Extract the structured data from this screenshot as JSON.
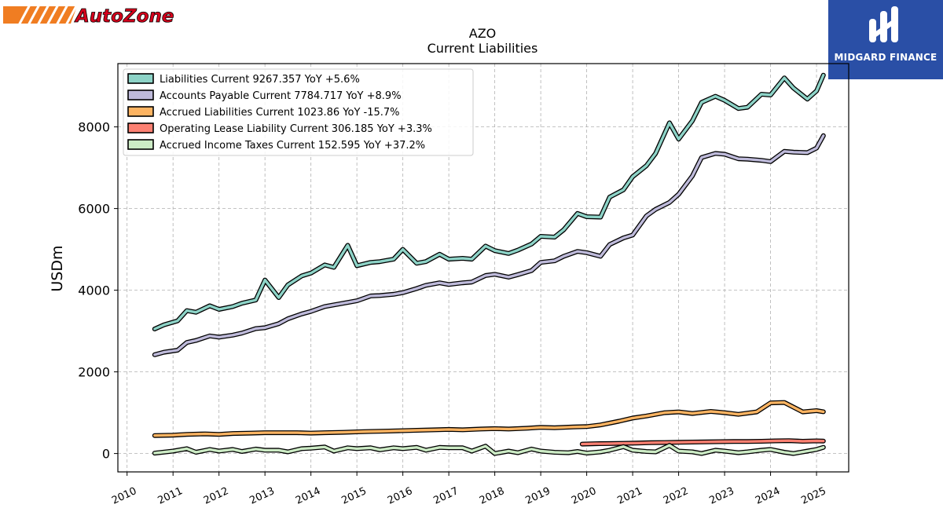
{
  "logos": {
    "left_text": "AutoZone",
    "right_text": "MIDGARD FINANCE"
  },
  "colors": {
    "autozone_orange": "#f07d22",
    "autozone_red": "#d6001c",
    "midgard_blue": "#2a4fa6"
  },
  "chart_data": {
    "type": "line",
    "title": "AZO",
    "subtitle": "Current  Liabilities",
    "xlabel": "",
    "ylabel": "USDm",
    "xlim": [
      2009.8,
      2025.7
    ],
    "ylim": [
      -450,
      9550
    ],
    "grid": true,
    "legend_position": "top-left",
    "x_ticks": [
      "2010",
      "2011",
      "2012",
      "2013",
      "2014",
      "2015",
      "2016",
      "2017",
      "2018",
      "2019",
      "2020",
      "2021",
      "2022",
      "2023",
      "2024",
      "2025"
    ],
    "y_ticks": [
      "0",
      "2000",
      "4000",
      "6000",
      "8000"
    ],
    "series": [
      {
        "name": "Liabilities Current",
        "legend": "Liabilities Current  9267.357 YoY +5.6%",
        "color": "#8dd3c7",
        "x": [
          2010.6,
          2010.8,
          2011.1,
          2011.3,
          2011.5,
          2011.8,
          2012.0,
          2012.3,
          2012.5,
          2012.8,
          2013.0,
          2013.3,
          2013.5,
          2013.8,
          2014.0,
          2014.3,
          2014.5,
          2014.8,
          2015.0,
          2015.3,
          2015.5,
          2015.8,
          2016.0,
          2016.3,
          2016.5,
          2016.8,
          2017.0,
          2017.3,
          2017.5,
          2017.8,
          2018.0,
          2018.3,
          2018.5,
          2018.8,
          2019.0,
          2019.3,
          2019.5,
          2019.8,
          2020.0,
          2020.3,
          2020.5,
          2020.8,
          2021.0,
          2021.3,
          2021.5,
          2021.8,
          2022.0,
          2022.3,
          2022.5,
          2022.8,
          2023.0,
          2023.3,
          2023.5,
          2023.8,
          2024.0,
          2024.3,
          2024.5,
          2024.8,
          2025.0,
          2025.15
        ],
        "values": [
          3050,
          3150,
          3250,
          3500,
          3460,
          3620,
          3530,
          3600,
          3680,
          3760,
          4250,
          3820,
          4130,
          4350,
          4420,
          4620,
          4560,
          5100,
          4600,
          4680,
          4700,
          4760,
          5000,
          4660,
          4700,
          4880,
          4760,
          4780,
          4760,
          5080,
          4970,
          4900,
          4980,
          5130,
          5320,
          5300,
          5480,
          5880,
          5800,
          5790,
          6280,
          6460,
          6780,
          7050,
          7350,
          8100,
          7700,
          8150,
          8600,
          8750,
          8650,
          8450,
          8480,
          8800,
          8780,
          9200,
          8950,
          8680,
          8880,
          9267.357
        ]
      },
      {
        "name": "Accounts Payable Current",
        "legend": "Accounts Payable Current  7784.717 YoY +8.9%",
        "color": "#bebada",
        "x": [
          2010.6,
          2010.8,
          2011.1,
          2011.3,
          2011.5,
          2011.8,
          2012.0,
          2012.3,
          2012.5,
          2012.8,
          2013.0,
          2013.3,
          2013.5,
          2013.8,
          2014.0,
          2014.3,
          2014.5,
          2014.8,
          2015.0,
          2015.3,
          2015.5,
          2015.8,
          2016.0,
          2016.3,
          2016.5,
          2016.8,
          2017.0,
          2017.3,
          2017.5,
          2017.8,
          2018.0,
          2018.3,
          2018.5,
          2018.8,
          2019.0,
          2019.3,
          2019.5,
          2019.8,
          2020.0,
          2020.3,
          2020.5,
          2020.8,
          2021.0,
          2021.3,
          2021.5,
          2021.8,
          2022.0,
          2022.3,
          2022.5,
          2022.8,
          2023.0,
          2023.3,
          2023.5,
          2023.8,
          2024.0,
          2024.3,
          2024.5,
          2024.8,
          2025.0,
          2025.15
        ],
        "values": [
          2420,
          2480,
          2530,
          2720,
          2770,
          2880,
          2850,
          2900,
          2950,
          3060,
          3080,
          3180,
          3300,
          3420,
          3480,
          3600,
          3640,
          3700,
          3740,
          3860,
          3870,
          3900,
          3940,
          4040,
          4120,
          4180,
          4140,
          4180,
          4200,
          4360,
          4390,
          4320,
          4380,
          4480,
          4680,
          4720,
          4830,
          4950,
          4920,
          4830,
          5120,
          5280,
          5350,
          5820,
          5980,
          6150,
          6350,
          6800,
          7250,
          7350,
          7330,
          7220,
          7210,
          7180,
          7150,
          7400,
          7380,
          7370,
          7480,
          7784.717
        ]
      },
      {
        "name": "Accrued Liabilities Current",
        "legend": "Accrued Liabilities Current  1023.86 YoY -15.7%",
        "color": "#fdb462",
        "x": [
          2010.6,
          2011.0,
          2011.3,
          2011.7,
          2012.0,
          2012.3,
          2012.7,
          2013.0,
          2013.3,
          2013.7,
          2014.0,
          2014.3,
          2014.7,
          2015.0,
          2015.3,
          2015.7,
          2016.0,
          2016.3,
          2016.7,
          2017.0,
          2017.3,
          2017.7,
          2018.0,
          2018.3,
          2018.7,
          2019.0,
          2019.3,
          2019.7,
          2020.0,
          2020.3,
          2020.7,
          2021.0,
          2021.3,
          2021.7,
          2022.0,
          2022.3,
          2022.7,
          2023.0,
          2023.3,
          2023.7,
          2024.0,
          2024.3,
          2024.7,
          2025.0,
          2025.15
        ],
        "values": [
          440,
          450,
          470,
          480,
          470,
          490,
          500,
          510,
          510,
          510,
          500,
          510,
          520,
          530,
          540,
          550,
          560,
          570,
          580,
          590,
          580,
          600,
          610,
          600,
          620,
          640,
          630,
          650,
          660,
          700,
          790,
          870,
          920,
          1000,
          1020,
          980,
          1030,
          1000,
          960,
          1020,
          1240,
          1250,
          1020,
          1050,
          1023.86
        ]
      },
      {
        "name": "Operating Lease Liability Current",
        "legend": "Operating Lease Liability Current  306.185 YoY +3.3%",
        "color": "#fb8072",
        "x": [
          2019.9,
          2020.2,
          2020.5,
          2020.8,
          2021.1,
          2021.4,
          2021.7,
          2022.0,
          2022.3,
          2022.6,
          2022.9,
          2023.2,
          2023.5,
          2023.8,
          2024.1,
          2024.4,
          2024.7,
          2025.0,
          2025.15
        ],
        "values": [
          230,
          240,
          245,
          250,
          255,
          265,
          270,
          275,
          280,
          285,
          290,
          295,
          295,
          300,
          310,
          315,
          300,
          310,
          306.185
        ]
      },
      {
        "name": "Accrued Income Taxes Current",
        "legend": "Accrued Income Taxes Current  152.595 YoY +37.2%",
        "color": "#ccebc5",
        "x": [
          2010.6,
          2011.0,
          2011.3,
          2011.5,
          2011.8,
          2012.0,
          2012.3,
          2012.5,
          2012.8,
          2013.0,
          2013.3,
          2013.5,
          2013.8,
          2014.0,
          2014.3,
          2014.5,
          2014.8,
          2015.0,
          2015.3,
          2015.5,
          2015.8,
          2016.0,
          2016.3,
          2016.5,
          2016.8,
          2017.0,
          2017.3,
          2017.5,
          2017.8,
          2018.0,
          2018.3,
          2018.5,
          2018.8,
          2019.0,
          2019.3,
          2019.6,
          2019.8,
          2020.0,
          2020.3,
          2020.5,
          2020.8,
          2021.0,
          2021.3,
          2021.5,
          2021.8,
          2022.0,
          2022.3,
          2022.5,
          2022.8,
          2023.0,
          2023.3,
          2023.5,
          2023.8,
          2024.0,
          2024.3,
          2024.5,
          2024.8,
          2025.0,
          2025.15
        ],
        "values": [
          10,
          60,
          120,
          30,
          100,
          60,
          100,
          50,
          110,
          80,
          80,
          40,
          120,
          130,
          160,
          60,
          140,
          120,
          140,
          90,
          140,
          120,
          150,
          80,
          150,
          140,
          140,
          60,
          180,
          0,
          60,
          20,
          110,
          60,
          30,
          20,
          50,
          10,
          40,
          80,
          170,
          80,
          50,
          40,
          200,
          60,
          40,
          0,
          80,
          60,
          20,
          40,
          80,
          100,
          30,
          0,
          60,
          100,
          152.595
        ]
      }
    ]
  }
}
